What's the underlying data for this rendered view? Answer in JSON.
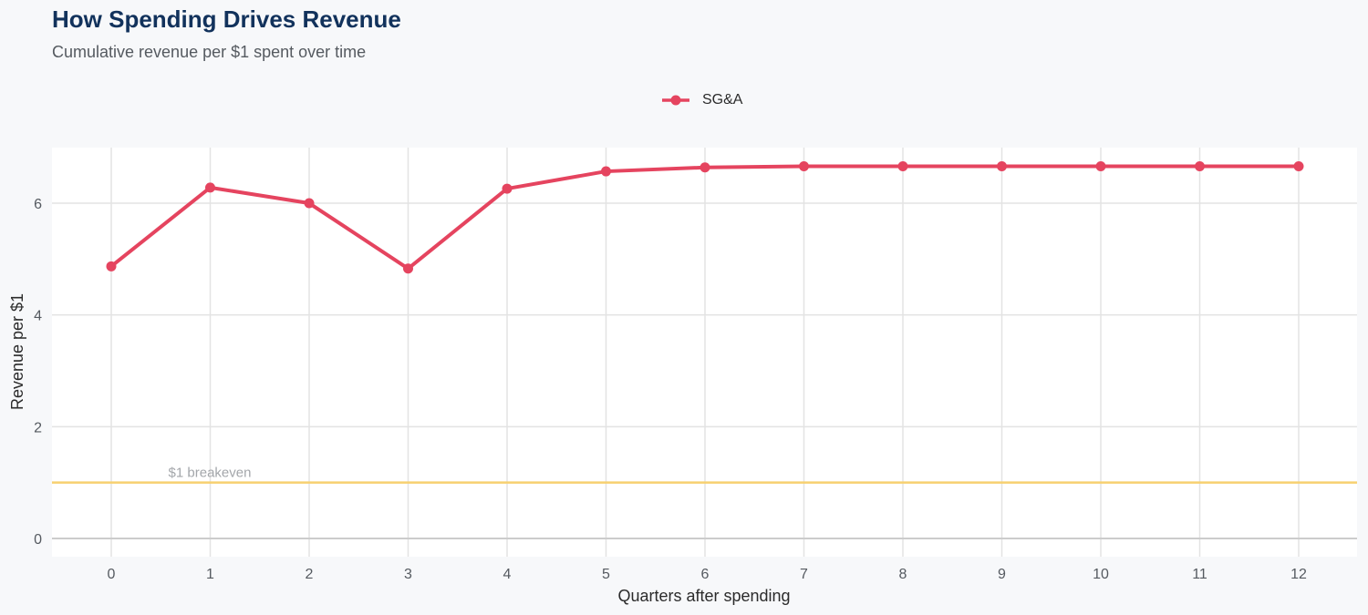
{
  "header": {
    "title": "How Spending Drives Revenue",
    "subtitle": "Cumulative revenue per $1 spent over time"
  },
  "legend": {
    "items": [
      {
        "label": "SG&A",
        "color": "#e5445f"
      }
    ]
  },
  "annotation": {
    "label": "$1 breakeven",
    "y": 1,
    "color": "#f7d070"
  },
  "chart_data": {
    "type": "line",
    "title": "How Spending Drives Revenue",
    "subtitle": "Cumulative revenue per $1 spent over time",
    "xlabel": "Quarters after spending",
    "ylabel": "Revenue per $1",
    "x": [
      0,
      1,
      2,
      3,
      4,
      5,
      6,
      7,
      8,
      9,
      10,
      11,
      12
    ],
    "series": [
      {
        "name": "SG&A",
        "color": "#e5445f",
        "values": [
          4.87,
          6.28,
          6.0,
          4.83,
          6.26,
          6.57,
          6.64,
          6.66,
          6.66,
          6.66,
          6.66,
          6.66,
          6.66
        ]
      }
    ],
    "xticks": [
      "0",
      "1",
      "2",
      "3",
      "4",
      "5",
      "6",
      "7",
      "8",
      "9",
      "10",
      "11",
      "12"
    ],
    "yticks": [
      "0",
      "2",
      "4",
      "6"
    ],
    "xlim": [
      -0.6,
      12.6
    ],
    "ylim": [
      -0.33,
      7.0
    ],
    "reference_lines": [
      {
        "y": 1,
        "label": "$1 breakeven",
        "color": "#f7d070"
      }
    ],
    "grid": true,
    "legend_position": "top"
  }
}
